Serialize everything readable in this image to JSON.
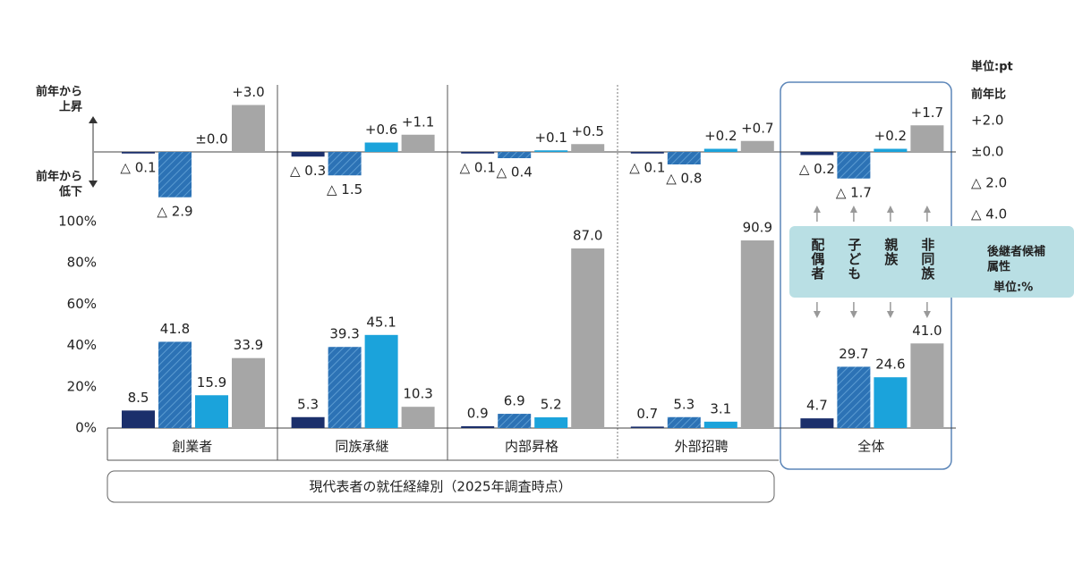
{
  "chart_data": [
    {
      "type": "bar",
      "ytitle": "前年比",
      "unit": "単位:pt",
      "up_label": [
        "前年から",
        "上昇"
      ],
      "down_label": [
        "前年から",
        "低下"
      ],
      "ylim": [
        -4,
        4
      ],
      "yticks": [
        {
          "value": 2,
          "label": "+2.0"
        },
        {
          "value": 0,
          "label": "±0.0"
        },
        {
          "value": -2,
          "label": "△ 2.0"
        },
        {
          "value": -4,
          "label": "△ 4.0"
        }
      ],
      "series": [
        {
          "color": "#1b2f6b",
          "values": [
            -0.1,
            -0.3,
            -0.1,
            -0.1,
            -0.2
          ],
          "value_labels": [
            "△ 0.1",
            "△ 0.3",
            "△ 0.1",
            "△ 0.1",
            "△ 0.2"
          ]
        },
        {
          "color": "#2c72b5",
          "pattern": "hatch",
          "values": [
            -2.9,
            -1.5,
            -0.4,
            -0.8,
            -1.7
          ],
          "value_labels": [
            "△ 2.9",
            "△ 1.5",
            "△ 0.4",
            "△ 0.8",
            "△ 1.7"
          ]
        },
        {
          "color": "#1ba3db",
          "values": [
            0.0,
            0.6,
            0.1,
            0.2,
            0.2
          ],
          "value_labels": [
            "±0.0",
            "+0.6",
            "+0.1",
            "+0.2",
            "+0.2"
          ]
        },
        {
          "color": "#a6a6a6",
          "values": [
            3.0,
            1.1,
            0.5,
            0.7,
            1.7
          ],
          "value_labels": [
            "+3.0",
            "+1.1",
            "+0.5",
            "+0.7",
            "+1.7"
          ]
        }
      ]
    },
    {
      "type": "bar",
      "xlabel": "現代表者の就任経緯別（2025年調査時点）",
      "legend_title": [
        "後継者候補",
        "属性"
      ],
      "unit": "単位:%",
      "categories": [
        "創業者",
        "同族承継",
        "内部昇格",
        "外部招聘",
        "全体"
      ],
      "ylim": [
        0,
        100
      ],
      "yticks": [
        {
          "value": 0,
          "label": "0%"
        },
        {
          "value": 20,
          "label": "20%"
        },
        {
          "value": 40,
          "label": "40%"
        },
        {
          "value": 60,
          "label": "60%"
        },
        {
          "value": 80,
          "label": "80%"
        },
        {
          "value": 100,
          "label": "100%"
        }
      ],
      "series": [
        {
          "name": "配偶者",
          "color": "#1b2f6b",
          "values": [
            8.5,
            5.3,
            0.9,
            0.7,
            4.7
          ],
          "value_labels": [
            "8.5",
            "5.3",
            "0.9",
            "0.7",
            "4.7"
          ]
        },
        {
          "name": "子ども",
          "color": "#2c72b5",
          "pattern": "hatch",
          "values": [
            41.8,
            39.3,
            6.9,
            5.3,
            29.7
          ],
          "value_labels": [
            "41.8",
            "39.3",
            "6.9",
            "5.3",
            "29.7"
          ]
        },
        {
          "name": "親族",
          "color": "#1ba3db",
          "values": [
            15.9,
            45.1,
            5.2,
            3.1,
            24.6
          ],
          "value_labels": [
            "15.9",
            "45.1",
            "5.2",
            "3.1",
            "24.6"
          ]
        },
        {
          "name": "非同族",
          "color": "#a6a6a6",
          "values": [
            33.9,
            10.3,
            87.0,
            90.9,
            41.0
          ],
          "value_labels": [
            "33.9",
            "10.3",
            "87.0",
            "90.9",
            "41.0"
          ]
        }
      ]
    }
  ]
}
